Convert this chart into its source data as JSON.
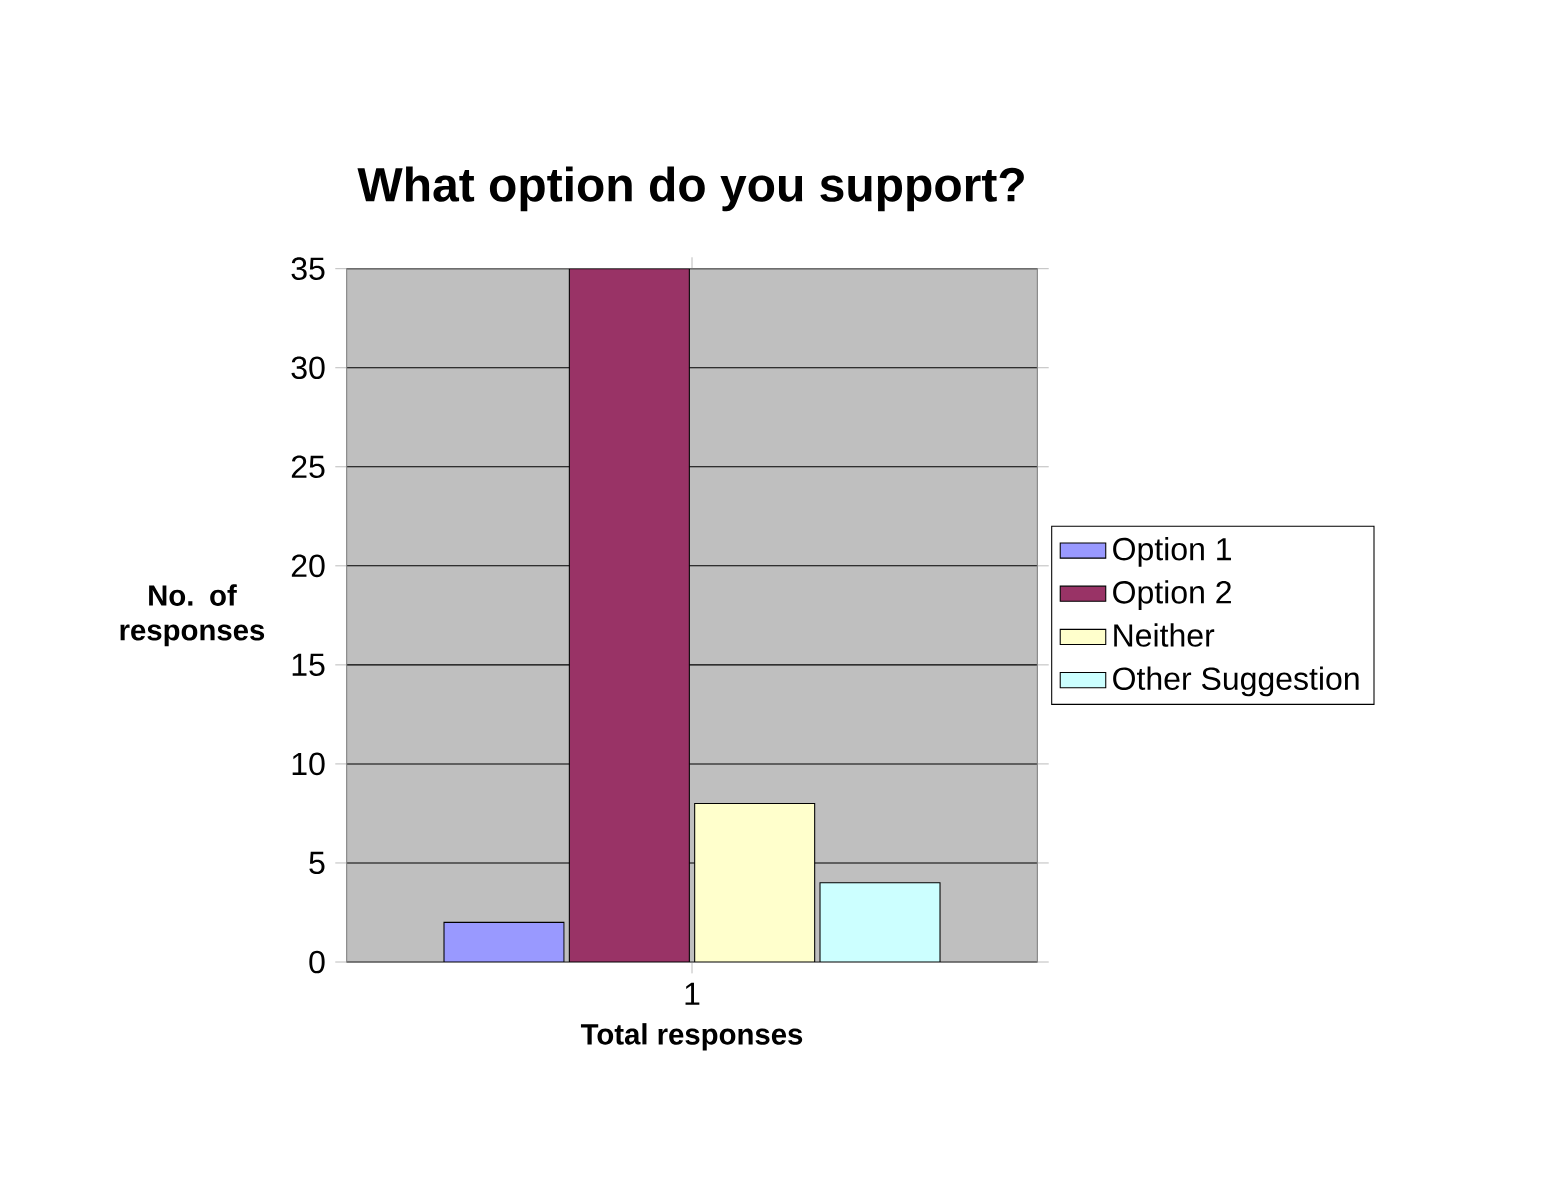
{
  "chart_data": {
    "type": "bar",
    "title": "What option do you support?",
    "xlabel": "Total responses",
    "ylabel": "No. of responses",
    "categories": [
      "1"
    ],
    "series": [
      {
        "name": "Option 1",
        "color": "#9999ff",
        "values": [
          2
        ]
      },
      {
        "name": "Option 2",
        "color": "#993366",
        "values": [
          35
        ]
      },
      {
        "name": "Neither",
        "color": "#ffffcc",
        "values": [
          8
        ]
      },
      {
        "name": "Other Suggestion",
        "color": "#ccffff",
        "values": [
          4
        ]
      }
    ],
    "ylim": [
      0,
      35
    ],
    "yticks": [
      0,
      5,
      10,
      15,
      20,
      25,
      30,
      35
    ],
    "grid": "y",
    "legend": "right"
  }
}
